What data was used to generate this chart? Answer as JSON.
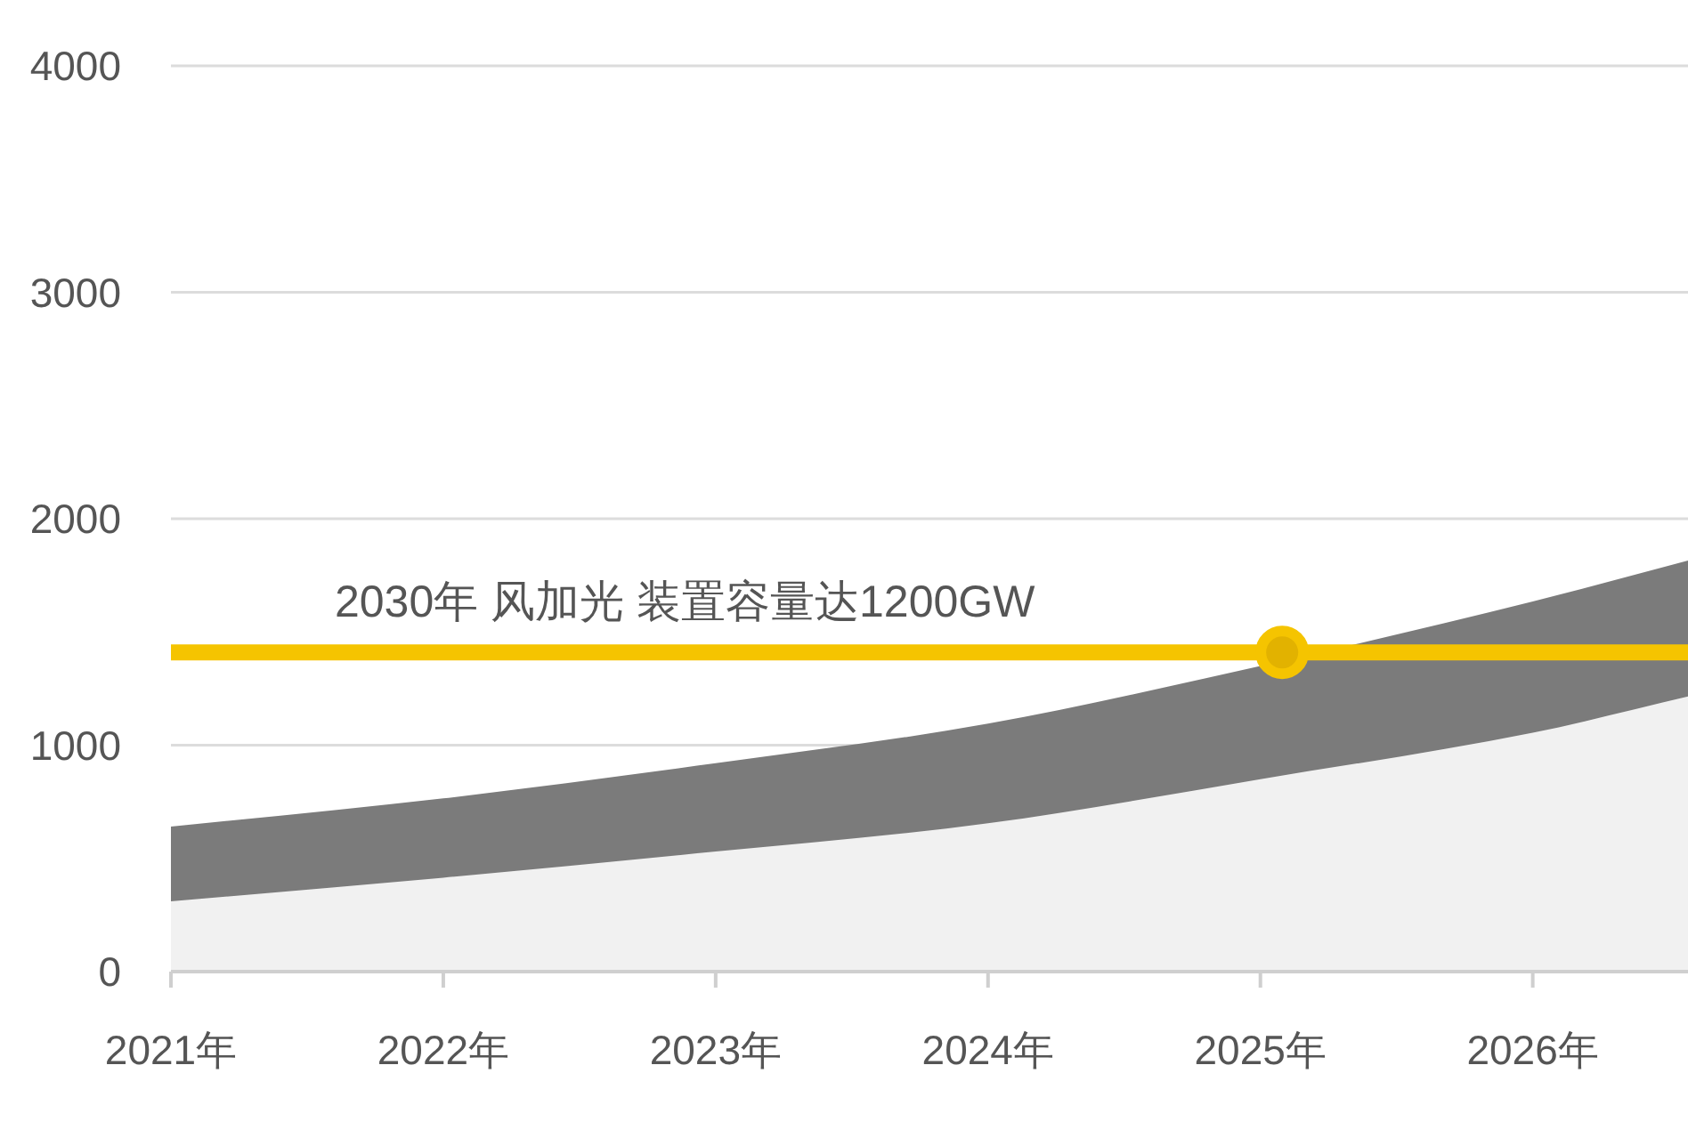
{
  "chart_data": {
    "type": "area",
    "xlim": [
      2021,
      2026.57
    ],
    "ylim": [
      0,
      4000
    ],
    "xticks": [
      {
        "value": 2021,
        "label": "2021年"
      },
      {
        "value": 2022,
        "label": "2022年"
      },
      {
        "value": 2023,
        "label": "2023年"
      },
      {
        "value": 2024,
        "label": "2024年"
      },
      {
        "value": 2025,
        "label": "2025年"
      },
      {
        "value": 2026,
        "label": "2026年"
      }
    ],
    "yticks": [
      0,
      1000,
      2000,
      3000,
      4000
    ],
    "grid": "y",
    "series": [
      {
        "color": "#7b7b7b",
        "x": [
          2021,
          2022,
          2023,
          2024,
          2025,
          2026,
          2026.57
        ],
        "values": [
          640,
          765,
          920,
          1095,
          1350,
          1635,
          1815
        ]
      },
      {
        "color": "#f1f1f1",
        "x": [
          2021,
          2022,
          2023,
          2024,
          2025,
          2026,
          2026.57
        ],
        "values": [
          310,
          415,
          530,
          655,
          850,
          1055,
          1215
        ]
      },
      {
        "type": "scatter",
        "marker": "circle",
        "color": "#f5c400",
        "x": [
          2025.08
        ],
        "values": [
          1410
        ]
      }
    ],
    "ref_lines": [
      {
        "axis": "y",
        "value": 1410,
        "label": "2030年 风加光 装置容量达1200GW",
        "color": "#f5c400"
      }
    ]
  }
}
